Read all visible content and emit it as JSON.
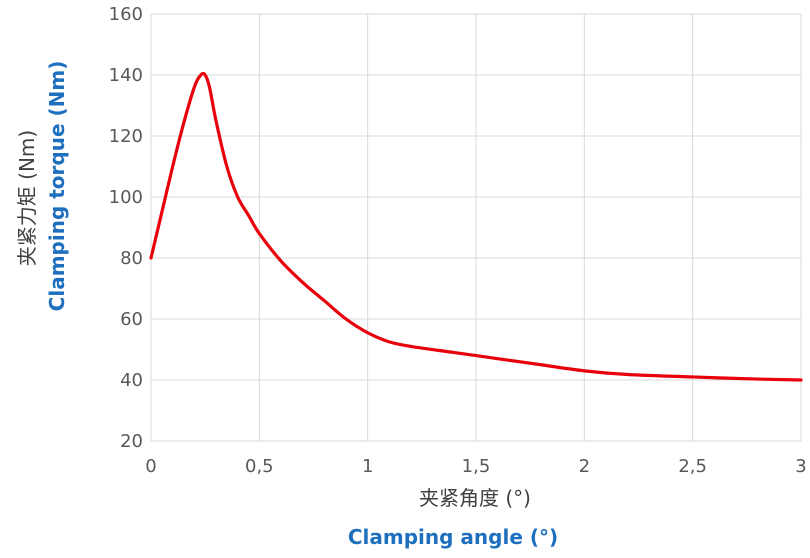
{
  "chart_data": {
    "type": "line",
    "xlabel_cn": "夹紧角度 (°)",
    "xlabel_en": "Clamping angle (°)",
    "ylabel_cn": "夹紧力矩 (Nm)",
    "ylabel_en": "Clamping torque (Nm)",
    "xlim": [
      0,
      3
    ],
    "ylim": [
      20,
      160
    ],
    "x_ticks": [
      {
        "value": 0,
        "label": "0"
      },
      {
        "value": 0.5,
        "label": "0,5"
      },
      {
        "value": 1,
        "label": "1"
      },
      {
        "value": 1.5,
        "label": "1,5"
      },
      {
        "value": 2,
        "label": "2"
      },
      {
        "value": 2.5,
        "label": "2,5"
      },
      {
        "value": 3,
        "label": "3"
      }
    ],
    "y_ticks": [
      {
        "value": 20,
        "label": "20"
      },
      {
        "value": 40,
        "label": "40"
      },
      {
        "value": 60,
        "label": "60"
      },
      {
        "value": 80,
        "label": "80"
      },
      {
        "value": 100,
        "label": "100"
      },
      {
        "value": 120,
        "label": "120"
      },
      {
        "value": 140,
        "label": "140"
      },
      {
        "value": 160,
        "label": "160"
      }
    ],
    "grid": true,
    "legend": "none",
    "series": [
      {
        "color": "#e8000b",
        "points": [
          [
            0,
            80
          ],
          [
            0.05,
            95
          ],
          [
            0.1,
            110
          ],
          [
            0.15,
            124
          ],
          [
            0.2,
            136
          ],
          [
            0.23,
            140
          ],
          [
            0.25,
            140
          ],
          [
            0.27,
            136
          ],
          [
            0.3,
            125
          ],
          [
            0.35,
            110
          ],
          [
            0.4,
            100
          ],
          [
            0.45,
            94
          ],
          [
            0.5,
            88
          ],
          [
            0.6,
            79
          ],
          [
            0.7,
            72
          ],
          [
            0.8,
            66
          ],
          [
            0.9,
            60
          ],
          [
            1.0,
            55.5
          ],
          [
            1.1,
            52.5
          ],
          [
            1.2,
            51
          ],
          [
            1.4,
            49
          ],
          [
            1.6,
            47
          ],
          [
            1.8,
            45
          ],
          [
            2.0,
            43
          ],
          [
            2.2,
            41.8
          ],
          [
            2.5,
            41
          ],
          [
            2.8,
            40.3
          ],
          [
            3.0,
            40
          ]
        ]
      }
    ]
  }
}
